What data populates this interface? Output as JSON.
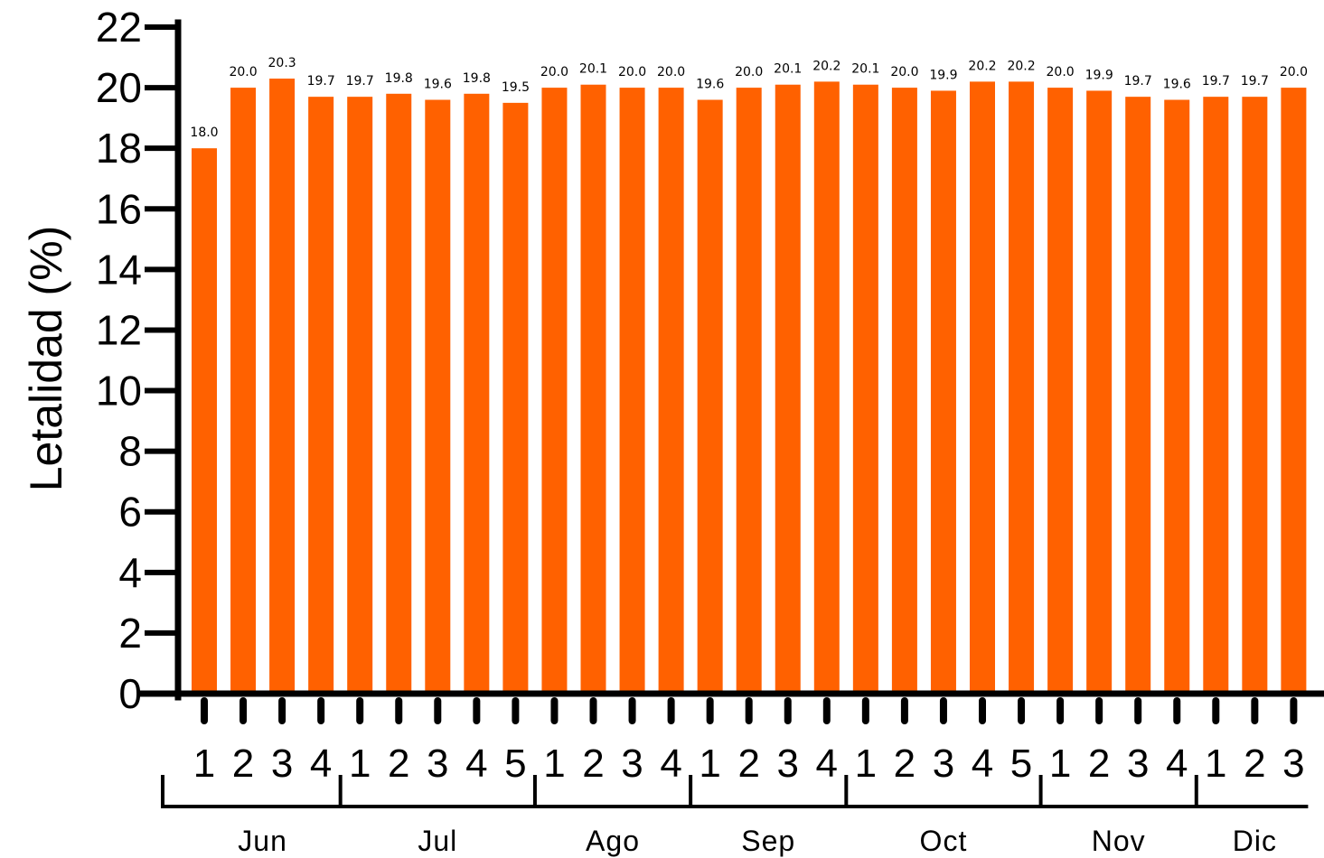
{
  "chart_data": {
    "type": "bar",
    "ylabel": "Letalidad (%)",
    "xlabel": "",
    "ylim": [
      0,
      22
    ],
    "yticks": [
      0,
      2,
      4,
      6,
      8,
      10,
      12,
      14,
      16,
      18,
      20,
      22
    ],
    "categories": [
      "1",
      "2",
      "3",
      "4",
      "1",
      "2",
      "3",
      "4",
      "5",
      "1",
      "2",
      "3",
      "4",
      "1",
      "2",
      "3",
      "4",
      "1",
      "2",
      "3",
      "4",
      "5",
      "1",
      "2",
      "3",
      "4",
      "1",
      "2",
      "3"
    ],
    "values": [
      18.0,
      20.0,
      20.3,
      19.7,
      19.7,
      19.8,
      19.6,
      19.8,
      19.5,
      20.0,
      20.1,
      20.0,
      20.0,
      19.6,
      20.0,
      20.1,
      20.2,
      20.1,
      20.0,
      19.9,
      20.2,
      20.2,
      20.0,
      19.9,
      19.7,
      19.6,
      19.7,
      19.7,
      20.0
    ],
    "data_labels": [
      "18.0",
      "20.0",
      "20.3",
      "19.7",
      "19.7",
      "19.8",
      "19.6",
      "19.8",
      "19.5",
      "20.0",
      "20.1",
      "20.0",
      "20.0",
      "19.6",
      "20.0",
      "20.1",
      "20.2",
      "20.1",
      "20.0",
      "19.9",
      "20.2",
      "20.2",
      "20.0",
      "19.9",
      "19.7",
      "19.6",
      "19.7",
      "19.7",
      "20.0"
    ],
    "groups": [
      {
        "label": "Jun",
        "count": 4
      },
      {
        "label": "Jul",
        "count": 5
      },
      {
        "label": "Ago",
        "count": 4
      },
      {
        "label": "Sep",
        "count": 4
      },
      {
        "label": "Oct",
        "count": 5
      },
      {
        "label": "Nov",
        "count": 4
      },
      {
        "label": "Dic",
        "count": 3
      }
    ],
    "bar_color": "#FF6100",
    "grid": false,
    "legend": "none"
  }
}
